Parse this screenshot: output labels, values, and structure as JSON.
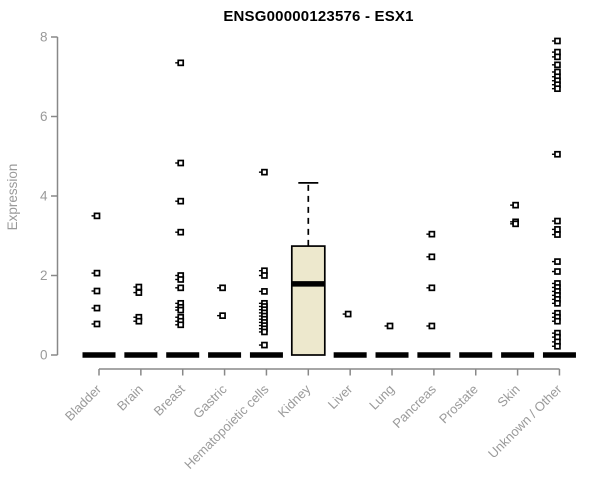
{
  "page": {
    "title": "ENSG00000123576 - ESX1"
  },
  "chart_data": {
    "type": "boxplot",
    "title": "ENSG00000123576 - ESX1",
    "xlabel": "",
    "ylabel": "Expression",
    "ylim": [
      0,
      8
    ],
    "yticks": [
      0,
      2,
      4,
      6,
      8
    ],
    "grid": false,
    "legend": "none",
    "categories": [
      "Bladder",
      "Brain",
      "Breast",
      "Gastric",
      "Hematopoietic cells",
      "Kidney",
      "Liver",
      "Lung",
      "Pancreas",
      "Prostate",
      "Skin",
      "Unknown / Other"
    ],
    "series": [
      {
        "name": "Bladder",
        "box": {
          "whisker_low": 0,
          "q1": 0,
          "median": 0,
          "q3": 0,
          "whisker_high": 0
        },
        "outliers": [
          3.5,
          2.06,
          1.61,
          1.18,
          0.78
        ]
      },
      {
        "name": "Brain",
        "box": {
          "whisker_low": 0,
          "q1": 0,
          "median": 0,
          "q3": 0,
          "whisker_high": 0
        },
        "outliers": [
          1.71,
          1.57,
          0.95,
          0.85
        ]
      },
      {
        "name": "Breast",
        "box": {
          "whisker_low": 0,
          "q1": 0,
          "median": 0,
          "q3": 0,
          "whisker_high": 0
        },
        "outliers": [
          7.35,
          4.83,
          3.87,
          3.09,
          2.0,
          1.9,
          1.69,
          1.3,
          1.2,
          1.13,
          0.95,
          0.85,
          0.76
        ]
      },
      {
        "name": "Gastric",
        "box": {
          "whisker_low": 0,
          "q1": 0,
          "median": 0,
          "q3": 0,
          "whisker_high": 0
        },
        "outliers": [
          1.69,
          0.99
        ]
      },
      {
        "name": "Hematopoietic cells",
        "box": {
          "whisker_low": 0,
          "q1": 0,
          "median": 0,
          "q3": 0,
          "whisker_high": 0
        },
        "outliers": [
          4.6,
          2.12,
          2.0,
          1.6,
          1.3,
          1.22,
          1.14,
          1.06,
          0.98,
          0.9,
          0.82,
          0.74,
          0.66,
          0.58,
          0.25
        ]
      },
      {
        "name": "Kidney",
        "box": {
          "whisker_low": 0,
          "q1": 0,
          "median": 1.79,
          "q3": 2.74,
          "whisker_high": 4.33
        },
        "outliers": []
      },
      {
        "name": "Liver",
        "box": {
          "whisker_low": 0,
          "q1": 0,
          "median": 0,
          "q3": 0,
          "whisker_high": 0
        },
        "outliers": [
          1.03
        ]
      },
      {
        "name": "Lung",
        "box": {
          "whisker_low": 0,
          "q1": 0,
          "median": 0,
          "q3": 0,
          "whisker_high": 0
        },
        "outliers": [
          0.73
        ]
      },
      {
        "name": "Pancreas",
        "box": {
          "whisker_low": 0,
          "q1": 0,
          "median": 0,
          "q3": 0,
          "whisker_high": 0
        },
        "outliers": [
          3.04,
          2.47,
          1.69,
          0.73
        ]
      },
      {
        "name": "Prostate",
        "box": {
          "whisker_low": 0,
          "q1": 0,
          "median": 0,
          "q3": 0,
          "whisker_high": 0
        },
        "outliers": []
      },
      {
        "name": "Skin",
        "box": {
          "whisker_low": 0,
          "q1": 0,
          "median": 0,
          "q3": 0,
          "whisker_high": 0
        },
        "outliers": [
          3.77,
          3.35,
          3.3
        ]
      },
      {
        "name": "Unknown / Other",
        "box": {
          "whisker_low": 0,
          "q1": 0,
          "median": 0,
          "q3": 0,
          "whisker_high": 0
        },
        "outliers": [
          7.9,
          7.62,
          7.5,
          7.3,
          7.12,
          7.0,
          6.9,
          6.8,
          6.7,
          5.05,
          3.37,
          3.16,
          3.03,
          2.35,
          2.1,
          1.8,
          1.7,
          1.6,
          1.5,
          1.4,
          1.3,
          1.05,
          0.95,
          0.85,
          0.55,
          0.45,
          0.33,
          0.22
        ]
      }
    ],
    "colors": {
      "background": "#ffffff",
      "title": "#000000",
      "axis": "#888888",
      "tick_label": "#9a9a9a",
      "box_fill": "#EDE8CD",
      "box_border": "#000000",
      "median": "#000000",
      "outlier_stroke": "#000000",
      "outlier_fill": "#ffffff"
    }
  }
}
